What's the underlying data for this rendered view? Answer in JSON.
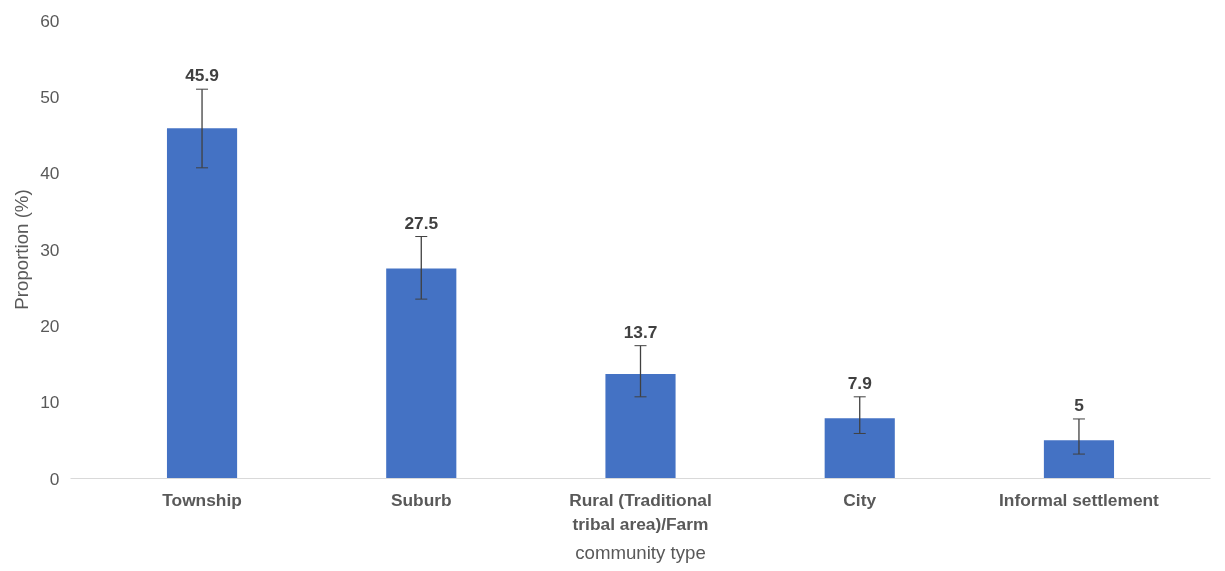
{
  "chart_data": {
    "type": "bar",
    "xlabel": "community type",
    "ylabel": "Proportion (%)",
    "categories": [
      "Township",
      "Suburb",
      "Rural (Traditional tribal area)/Farm",
      "City",
      "Informal settlement"
    ],
    "values": [
      45.9,
      27.5,
      13.7,
      7.9,
      5
    ],
    "errors": [
      [
        40.7,
        51.0
      ],
      [
        23.5,
        31.7
      ],
      [
        10.7,
        17.4
      ],
      [
        5.9,
        10.7
      ],
      [
        3.2,
        7.8
      ]
    ],
    "color": "#4472c4",
    "ylim": [
      0,
      60
    ],
    "yticks": [
      0,
      10,
      20,
      30,
      40,
      50,
      60
    ],
    "grid": false,
    "data_labels": true
  }
}
